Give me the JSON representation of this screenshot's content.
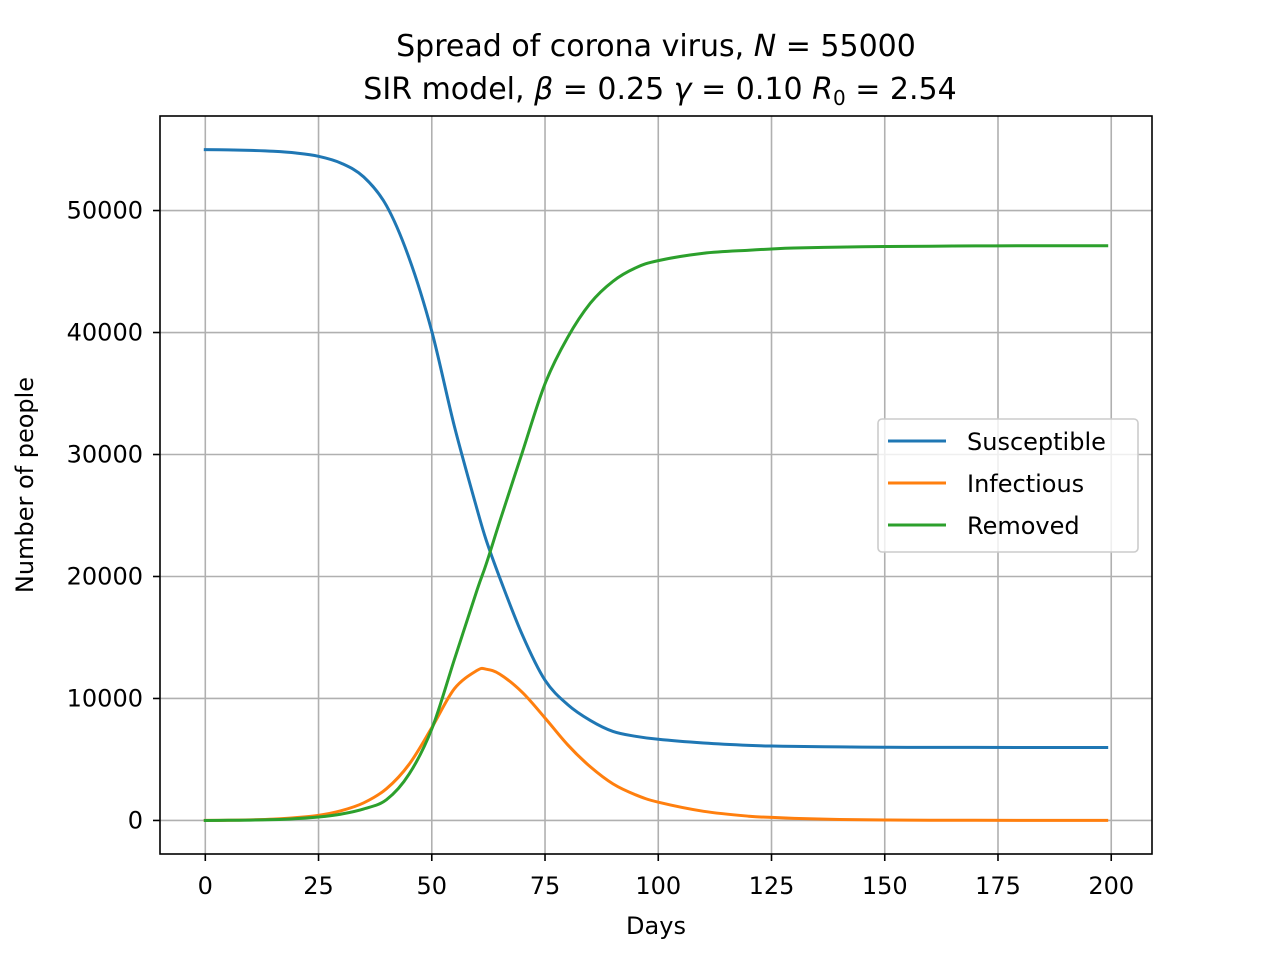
{
  "chart_data": {
    "type": "line",
    "title": {
      "line1_text": "Spread of corona virus, ",
      "line1_var": "N",
      "line1_eq": " = 55000",
      "line2_text": "SIR model, ",
      "beta_sym": "β",
      "beta_val": " = 0.25 ",
      "gamma_sym": "γ",
      "gamma_val": " = 0.10 ",
      "r_sym": "R",
      "r_sub": "0",
      "r_val": " = 2.54"
    },
    "xlabel": "Days",
    "ylabel": "Number of people",
    "xlim": [
      -10,
      209
    ],
    "ylim": [
      -2750,
      57750
    ],
    "xticks": [
      0,
      25,
      50,
      75,
      100,
      125,
      150,
      175,
      200
    ],
    "yticks": [
      0,
      10000,
      20000,
      30000,
      40000,
      50000
    ],
    "grid": true,
    "legend_position": "center-right",
    "x": [
      0,
      5,
      10,
      15,
      20,
      25,
      30,
      35,
      40,
      45,
      50,
      55,
      60,
      62,
      65,
      70,
      75,
      80,
      85,
      90,
      95,
      100,
      110,
      120,
      125,
      130,
      140,
      150,
      160,
      170,
      180,
      190,
      199
    ],
    "series": [
      {
        "name": "Susceptible",
        "color": "#1f77b4",
        "values": [
          54999,
          54970,
          54930,
          54860,
          54720,
          54450,
          53880,
          52750,
          50400,
          46100,
          40100,
          32300,
          25500,
          23000,
          19900,
          15200,
          11500,
          9500,
          8200,
          7300,
          6900,
          6650,
          6350,
          6150,
          6100,
          6070,
          6030,
          6000,
          5990,
          5985,
          5980,
          5978,
          5977
        ]
      },
      {
        "name": "Infectious",
        "color": "#ff7f0e",
        "values": [
          1,
          15,
          45,
          110,
          230,
          420,
          800,
          1450,
          2600,
          4600,
          7600,
          10800,
          12300,
          12400,
          12000,
          10500,
          8400,
          6200,
          4400,
          3000,
          2100,
          1500,
          750,
          350,
          250,
          170,
          80,
          40,
          20,
          10,
          5,
          3,
          2
        ]
      },
      {
        "name": "Removed",
        "color": "#2ca02c",
        "values": [
          0,
          10,
          30,
          70,
          150,
          280,
          520,
          950,
          1700,
          3800,
          7500,
          13200,
          18900,
          21000,
          24500,
          30200,
          35800,
          39600,
          42400,
          44200,
          45300,
          45900,
          46500,
          46750,
          46850,
          46930,
          47000,
          47050,
          47080,
          47100,
          47110,
          47115,
          47120
        ]
      }
    ]
  }
}
